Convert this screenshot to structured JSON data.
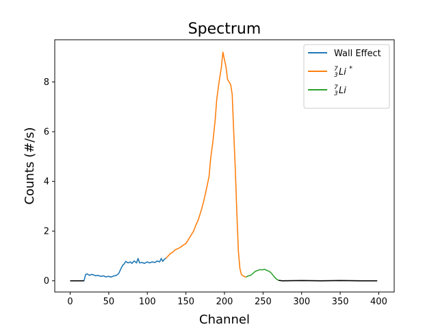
{
  "chart_data": {
    "type": "line",
    "title": "Spectrum",
    "xlabel": "Channel",
    "ylabel": "Counts (#/s)",
    "xlim": [
      -20,
      420
    ],
    "ylim": [
      -0.45,
      9.7
    ],
    "xticks": [
      0,
      50,
      100,
      150,
      200,
      250,
      300,
      350,
      400
    ],
    "yticks": [
      0,
      2,
      4,
      6,
      8
    ],
    "grid": false,
    "legend_position": "top-right",
    "series": [
      {
        "name": "Wall Effect",
        "color": "#1f77b4",
        "points": [
          [
            18,
            0.0
          ],
          [
            20,
            0.25
          ],
          [
            22,
            0.28
          ],
          [
            25,
            0.22
          ],
          [
            28,
            0.26
          ],
          [
            30,
            0.24
          ],
          [
            33,
            0.2
          ],
          [
            36,
            0.22
          ],
          [
            40,
            0.18
          ],
          [
            43,
            0.2
          ],
          [
            46,
            0.16
          ],
          [
            50,
            0.18
          ],
          [
            53,
            0.15
          ],
          [
            56,
            0.19
          ],
          [
            60,
            0.22
          ],
          [
            63,
            0.3
          ],
          [
            66,
            0.5
          ],
          [
            68,
            0.62
          ],
          [
            70,
            0.68
          ],
          [
            72,
            0.78
          ],
          [
            75,
            0.72
          ],
          [
            78,
            0.76
          ],
          [
            80,
            0.7
          ],
          [
            83,
            0.8
          ],
          [
            86,
            0.72
          ],
          [
            88,
            0.9
          ],
          [
            90,
            0.72
          ],
          [
            93,
            0.74
          ],
          [
            96,
            0.7
          ],
          [
            100,
            0.76
          ],
          [
            103,
            0.72
          ],
          [
            106,
            0.76
          ],
          [
            110,
            0.74
          ],
          [
            113,
            0.8
          ],
          [
            116,
            0.76
          ],
          [
            118,
            0.9
          ],
          [
            120,
            0.78
          ],
          [
            122,
            0.86
          ],
          [
            124,
            0.92
          ]
        ]
      },
      {
        "name": "$^{7}_{3}Li^{*}$",
        "color": "#ff7f0e",
        "points": [
          [
            124,
            0.9
          ],
          [
            127,
            1.0
          ],
          [
            130,
            1.1
          ],
          [
            133,
            1.15
          ],
          [
            136,
            1.25
          ],
          [
            140,
            1.3
          ],
          [
            143,
            1.35
          ],
          [
            146,
            1.42
          ],
          [
            150,
            1.5
          ],
          [
            153,
            1.65
          ],
          [
            156,
            1.8
          ],
          [
            160,
            2.0
          ],
          [
            163,
            2.25
          ],
          [
            166,
            2.45
          ],
          [
            170,
            2.85
          ],
          [
            173,
            3.2
          ],
          [
            176,
            3.6
          ],
          [
            180,
            4.2
          ],
          [
            182,
            4.9
          ],
          [
            185,
            5.6
          ],
          [
            188,
            6.5
          ],
          [
            190,
            7.3
          ],
          [
            193,
            8.0
          ],
          [
            196,
            8.6
          ],
          [
            198,
            9.2
          ],
          [
            200,
            8.9
          ],
          [
            202,
            8.6
          ],
          [
            204,
            8.1
          ],
          [
            206,
            8.0
          ],
          [
            208,
            7.9
          ],
          [
            210,
            7.5
          ],
          [
            212,
            6.0
          ],
          [
            214,
            4.5
          ],
          [
            216,
            2.8
          ],
          [
            218,
            1.2
          ],
          [
            220,
            0.5
          ],
          [
            222,
            0.25
          ],
          [
            225,
            0.18
          ],
          [
            228,
            0.15
          ]
        ]
      },
      {
        "name": "$^{7}_{3}Li$",
        "color": "#2ca02c",
        "points": [
          [
            228,
            0.15
          ],
          [
            231,
            0.2
          ],
          [
            234,
            0.22
          ],
          [
            237,
            0.3
          ],
          [
            240,
            0.38
          ],
          [
            243,
            0.42
          ],
          [
            246,
            0.45
          ],
          [
            249,
            0.44
          ],
          [
            252,
            0.46
          ],
          [
            255,
            0.42
          ],
          [
            258,
            0.38
          ],
          [
            261,
            0.3
          ],
          [
            264,
            0.18
          ],
          [
            267,
            0.08
          ],
          [
            270,
            0.02
          ]
        ]
      },
      {
        "name": "",
        "color": "#000000",
        "points": [
          [
            0,
            0.0
          ],
          [
            18,
            0.0
          ]
        ]
      },
      {
        "name": "",
        "color": "#000000",
        "points": [
          [
            270,
            0.02
          ],
          [
            275,
            0.0
          ],
          [
            300,
            0.01
          ],
          [
            325,
            0.0
          ],
          [
            350,
            0.01
          ],
          [
            375,
            0.0
          ],
          [
            398,
            0.0
          ]
        ]
      }
    ]
  }
}
